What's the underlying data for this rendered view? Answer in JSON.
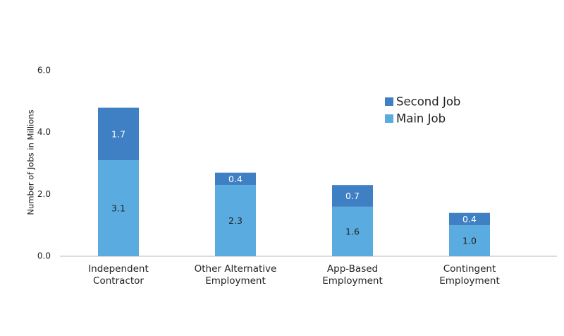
{
  "chart_data": {
    "type": "stacked_bar",
    "y_axis_label": "Number of Jobs in Millions",
    "categories": [
      "Independent Contractor",
      "Other Alternative Employment",
      "App-Based Employment",
      "Contingent Employment"
    ],
    "series": [
      {
        "name": "Main Job",
        "color": "#5aace0",
        "values": [
          3.1,
          2.3,
          1.6,
          1.0
        ],
        "value_labels": [
          "3.1",
          "2.3",
          "1.6",
          "1.0"
        ]
      },
      {
        "name": "Second Job",
        "color": "#3f7fc4",
        "values": [
          1.7,
          0.4,
          0.7,
          0.4
        ]
      }
    ],
    "ylim": [
      0,
      6
    ],
    "yticks": [
      {
        "value": 0,
        "label": "0.0"
      },
      {
        "value": 2,
        "label": "2.0"
      },
      {
        "value": 4,
        "label": "4.0"
      },
      {
        "value": 6,
        "label": "6.0"
      }
    ],
    "grid": false,
    "legend": "upper right"
  }
}
